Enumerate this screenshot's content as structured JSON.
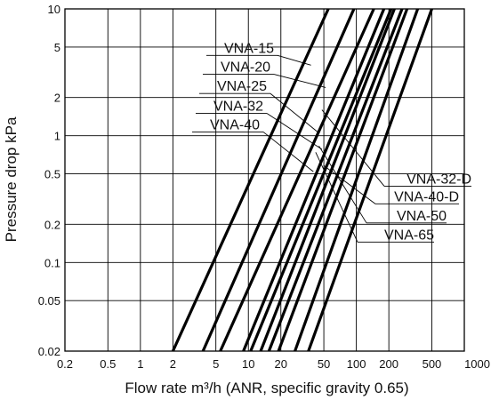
{
  "chart_data": {
    "type": "line",
    "x_scale": "log",
    "y_scale": "log",
    "xlim": [
      0.2,
      1000
    ],
    "ylim": [
      0.02,
      10
    ],
    "xlabel": "Flow rate m³/h (ANR, specific gravity 0.65)",
    "ylabel": "Pressure drop kPa",
    "x_ticks": [
      {
        "v": 0.2,
        "label": "0.2"
      },
      {
        "v": 0.5,
        "label": "0.5"
      },
      {
        "v": 1,
        "label": "1"
      },
      {
        "v": 2,
        "label": "2"
      },
      {
        "v": 5,
        "label": "5"
      },
      {
        "v": 10,
        "label": "10"
      },
      {
        "v": 20,
        "label": "20"
      },
      {
        "v": 50,
        "label": "50"
      },
      {
        "v": 100,
        "label": "100"
      },
      {
        "v": 200,
        "label": "200"
      },
      {
        "v": 500,
        "label": "500"
      },
      {
        "v": 1000,
        "label": "1000"
      }
    ],
    "y_ticks": [
      {
        "v": 0.02,
        "label": "0.02"
      },
      {
        "v": 0.05,
        "label": "0.05"
      },
      {
        "v": 0.1,
        "label": "0.1"
      },
      {
        "v": 0.2,
        "label": "0.2"
      },
      {
        "v": 0.5,
        "label": "0.5"
      },
      {
        "v": 1,
        "label": "1"
      },
      {
        "v": 2,
        "label": "2"
      },
      {
        "v": 5,
        "label": "5"
      },
      {
        "v": 10,
        "label": "10"
      }
    ],
    "x_grid": [
      0.2,
      0.5,
      1,
      2,
      5,
      10,
      20,
      50,
      100,
      200,
      500,
      1000
    ],
    "y_grid": [
      0.02,
      0.05,
      0.1,
      0.2,
      0.5,
      1,
      2,
      5,
      10
    ],
    "grid": true,
    "lines": [
      {
        "x": [
          2.0,
          55
        ],
        "y": [
          0.02,
          10
        ]
      },
      {
        "x": [
          3.8,
          95
        ],
        "y": [
          0.02,
          10
        ]
      },
      {
        "x": [
          5.5,
          145
        ],
        "y": [
          0.02,
          10
        ]
      },
      {
        "x": [
          9.0,
          180
        ],
        "y": [
          0.02,
          10
        ]
      },
      {
        "x": [
          10.5,
          210
        ],
        "y": [
          0.02,
          10
        ]
      },
      {
        "x": [
          13.0,
          225
        ],
        "y": [
          0.02,
          10
        ]
      },
      {
        "x": [
          15.5,
          265
        ],
        "y": [
          0.02,
          10
        ]
      },
      {
        "x": [
          19.0,
          295
        ],
        "y": [
          0.02,
          10
        ]
      },
      {
        "x": [
          27.0,
          370
        ],
        "y": [
          0.02,
          10
        ]
      },
      {
        "x": [
          36.0,
          500
        ],
        "y": [
          0.02,
          10
        ]
      }
    ],
    "annotations_left": [
      {
        "text": "VNA-15",
        "y": 4.3,
        "to": {
          "x": 38,
          "y": 3.6
        }
      },
      {
        "text": "VNA-20",
        "y": 3.05,
        "to": {
          "x": 52,
          "y": 2.4
        }
      },
      {
        "text": "VNA-25",
        "y": 2.15,
        "to": {
          "x": 45,
          "y": 1.05
        }
      },
      {
        "text": "VNA-32",
        "y": 1.5,
        "to": {
          "x": 48,
          "y": 0.78
        }
      },
      {
        "text": "VNA-40",
        "y": 1.07,
        "to": {
          "x": 40,
          "y": 0.52
        }
      }
    ],
    "annotations_right": [
      {
        "text": "VNA-32-D",
        "y": 0.4,
        "to": {
          "x": 48,
          "y": 1.6
        }
      },
      {
        "text": "VNA-40-D",
        "y": 0.29,
        "to": {
          "x": 50,
          "y": 0.58
        }
      },
      {
        "text": "VNA-50",
        "y": 0.205,
        "to": {
          "x": 45,
          "y": 0.83
        }
      },
      {
        "text": "VNA-65",
        "y": 0.145,
        "to": {
          "x": 42,
          "y": 0.74
        }
      }
    ]
  }
}
